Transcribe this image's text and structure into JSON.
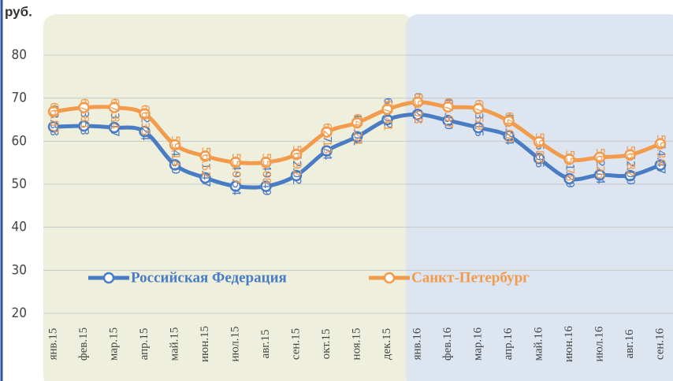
{
  "chart_data": {
    "type": "line",
    "y_label": "руб.",
    "categories": [
      "янв.15",
      "фев.15",
      "мар.15",
      "апр.15",
      "май.15",
      "июн.15",
      "июл.15",
      "авг.15",
      "сен.15",
      "окт.15",
      "ноя.15",
      "дек.15",
      "янв.16",
      "фев.16",
      "мар.16",
      "апр.16",
      "май.16",
      "июн.16",
      "июл.16",
      "авг.16",
      "сен.16"
    ],
    "series": [
      {
        "name": "Российская Федерация",
        "color": "#4a7cc4",
        "values": [
          63.33,
          63.53,
          63.17,
          62.24,
          54.5,
          51.47,
          49.54,
          49.49,
          52.02,
          57.74,
          61.01,
          65.02,
          66.22,
          64.8,
          63.15,
          61.24,
          55.96,
          51.29,
          52.14,
          52.0,
          54.47
        ],
        "value_labels": [
          "63.33",
          "63.53",
          "63.17",
          "62.24",
          "54.50",
          "51.47",
          "49.54",
          "49.49",
          "52.02",
          "57.74",
          "61.01",
          "65.02",
          "66.22",
          "64.80",
          "63.15",
          "61.24",
          "55.96",
          "51.29",
          "52.14",
          "52.00",
          "54.47"
        ]
      },
      {
        "name": "Санкт-Петербург",
        "color": "#f39b4c",
        "values": [
          66.87,
          67.81,
          67.84,
          66.35,
          59.14,
          56.52,
          55.07,
          55.08,
          56.92,
          62.13,
          64.28,
          67.41,
          69.08,
          67.97,
          67.59,
          64.68,
          59.83,
          55.78,
          56.25,
          56.82,
          59.39
        ],
        "value_labels": [
          "66.87",
          "67.81",
          "67.84",
          "66.35",
          "59.14",
          "56.52",
          "55.07",
          "55.08",
          "56.92",
          "62.13",
          "64.28",
          "67.41",
          "69.08",
          "67.97",
          "67.59",
          "64.68",
          "59.83",
          "55.78",
          "56.25",
          "56.82",
          "59.39"
        ]
      }
    ],
    "ylim": [
      20,
      80
    ],
    "yticks": [
      20,
      30,
      40,
      50,
      60,
      70,
      80
    ],
    "grid": true
  }
}
